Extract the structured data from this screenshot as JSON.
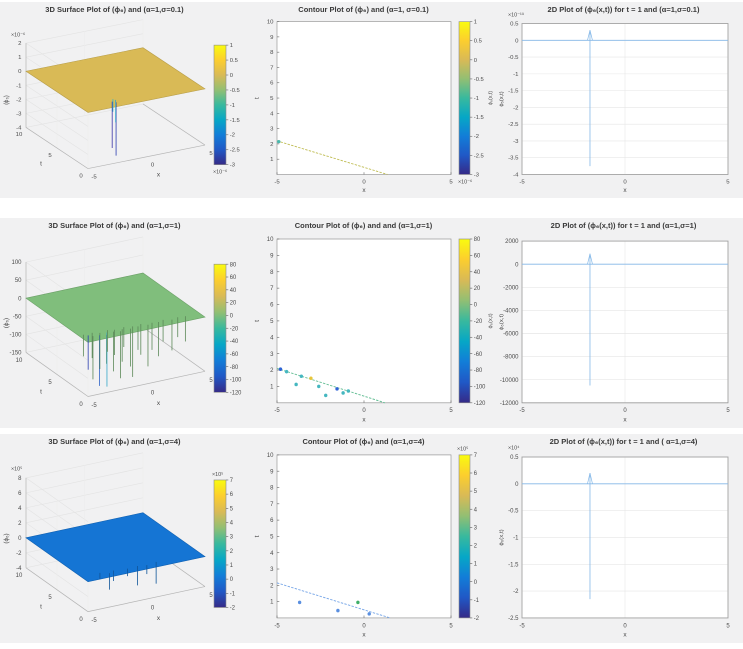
{
  "page": {
    "background": "#ffffff",
    "panel_background": "#f1f1f2",
    "axes_background": "#ffffff",
    "title_color": "#3a3a3a",
    "tick_color": "#4a4a4a",
    "grid_color": "#e6e6e6",
    "box_color": "#9a9a9a",
    "line_blue": "#85b8e8"
  },
  "colormap": [
    "#352a87",
    "#2058c6",
    "#127dd8",
    "#06a7c6",
    "#38b99e",
    "#92bf73",
    "#d9ba56",
    "#fcce2e",
    "#f9fb0e"
  ],
  "chart_data": [
    {
      "panel": "surface-r1",
      "type": "surface-3d",
      "title": "3D Surface Plot of (ϕ₆) and (α=1,σ=0.1)",
      "xlabel": "x",
      "tlabel": "t",
      "zlabel": "(ϕ₆)",
      "x_ticks": [
        -5,
        0,
        5
      ],
      "t_ticks": [
        10,
        5,
        0
      ],
      "z_ticks": [
        2,
        1,
        0,
        -1,
        -2,
        -3,
        -4
      ],
      "z_range": [
        -4,
        2
      ],
      "z_exp": "×10⁻⁶",
      "surface_z": 0,
      "clim": [
        -3,
        1
      ],
      "spikes": [
        {
          "x": -2.35,
          "t": 1.1,
          "d": 3.3,
          "c": "#3a35a8"
        },
        {
          "x": -2.15,
          "t": 0.85,
          "d": 3.8,
          "c": "#2c3eb0"
        },
        {
          "x": -2.05,
          "t": 1.55,
          "d": 0.9,
          "c": "#35b5c8"
        },
        {
          "x": -1.95,
          "t": 1.3,
          "d": 1.6,
          "c": "#35a8c8"
        }
      ],
      "colorbar": {
        "ticks": [
          "1",
          "0.5",
          "0",
          "-0.5",
          "-1",
          "-1.5",
          "-2",
          "-2.5",
          "-3"
        ],
        "exp": "×10⁻⁶",
        "exp_pos": "bottom"
      }
    },
    {
      "panel": "contour-r1",
      "type": "contour",
      "title": "Contour Plot of (ϕ₆) and (α=1, σ=0.1)",
      "xlabel": "x",
      "ylabel": "t",
      "x_range": [
        -5,
        5
      ],
      "y_range": [
        0,
        10
      ],
      "x_ticks": [
        -5,
        0,
        5
      ],
      "y_ticks": [
        1,
        2,
        3,
        4,
        5,
        6,
        7,
        8,
        9,
        10
      ],
      "band": {
        "from": [
          -5,
          2.2
        ],
        "to": [
          1.35,
          0
        ],
        "color": "#bfbc52"
      },
      "dots": [
        {
          "x": -4.9,
          "y": 2.15,
          "c": "#49b8ae"
        }
      ],
      "colorbar": {
        "ticks": [
          "1",
          "0.5",
          "0",
          "-0.5",
          "-1",
          "-1.5",
          "-2",
          "-2.5",
          "-3"
        ],
        "exp": "×10⁻⁶",
        "exp_pos": "bottom",
        "label": "ϕ₆(x,t)"
      }
    },
    {
      "panel": "line-r1",
      "type": "line",
      "title": "2D Plot of (ϕ₆(x,t)) for t = 1 and (α=1,σ=0.1)",
      "xlabel": "x",
      "ylabel": "ϕ₆(x,t)",
      "y_exp": "×10⁻¹⁹",
      "x_range": [
        -5,
        5
      ],
      "x_ticks": [
        -5,
        0,
        5
      ],
      "y_range": [
        -4,
        0.5
      ],
      "y_ticks": [
        0.5,
        0,
        -0.5,
        -1,
        -1.5,
        -2,
        -2.5,
        -3,
        -3.5,
        -4
      ],
      "line_color": "#85b8e8",
      "points": [
        [
          -5,
          0
        ],
        [
          -1.75,
          0.3
        ],
        [
          -1.7,
          -3.75
        ],
        [
          -1.62,
          0
        ],
        [
          5,
          0
        ]
      ],
      "spike": {
        "x": -1.7,
        "min": -3.75,
        "peak": 0.3
      }
    },
    {
      "panel": "surface-r2",
      "type": "surface-3d",
      "title": "3D Surface Plot of (ϕ₆) and (α=1,σ=1)",
      "xlabel": "x",
      "tlabel": "t",
      "zlabel": "(ϕ₆)",
      "x_ticks": [
        -5,
        0,
        5
      ],
      "t_ticks": [
        10,
        5,
        0
      ],
      "z_ticks": [
        100,
        50,
        0,
        -50,
        -100,
        -150
      ],
      "z_range": [
        -150,
        100
      ],
      "z_exp": "",
      "surface_z": 0,
      "clim": [
        -120,
        80
      ],
      "spikes": [
        {
          "x": -4.6,
          "t": 1.5,
          "d": 60
        },
        {
          "x": -4.35,
          "t": 1.2,
          "d": 95,
          "c": "#2c3eb0"
        },
        {
          "x": -4.1,
          "t": 0.9,
          "d": 120
        },
        {
          "x": -3.85,
          "t": 1.5,
          "d": 70
        },
        {
          "x": -3.6,
          "t": 0.8,
          "d": 140,
          "c": "#2c62c8"
        },
        {
          "x": -3.35,
          "t": 1.2,
          "d": 100
        },
        {
          "x": -3.1,
          "t": 0.6,
          "d": 80
        },
        {
          "x": -2.85,
          "t": 1.0,
          "d": 150,
          "c": "#35a8c8"
        },
        {
          "x": -2.6,
          "t": 1.4,
          "d": 60
        },
        {
          "x": -2.35,
          "t": 0.9,
          "d": 110
        },
        {
          "x": -2.1,
          "t": 1.2,
          "d": 70
        },
        {
          "x": -1.85,
          "t": 0.7,
          "d": 130
        },
        {
          "x": -1.55,
          "t": 1.0,
          "d": 90
        },
        {
          "x": -1.25,
          "t": 1.3,
          "d": 55
        },
        {
          "x": -0.95,
          "t": 0.8,
          "d": 105
        },
        {
          "x": -0.6,
          "t": 1.1,
          "d": 140
        },
        {
          "x": -0.25,
          "t": 0.9,
          "d": 65
        },
        {
          "x": 0.15,
          "t": 1.2,
          "d": 85
        },
        {
          "x": 0.55,
          "t": 0.8,
          "d": 115
        },
        {
          "x": 1.0,
          "t": 1.0,
          "d": 75
        },
        {
          "x": 1.5,
          "t": 0.9,
          "d": 95
        },
        {
          "x": 2.0,
          "t": 1.1,
          "d": 60
        },
        {
          "x": 2.6,
          "t": 0.8,
          "d": 85
        },
        {
          "x": 3.2,
          "t": 1.0,
          "d": 55
        },
        {
          "x": 3.8,
          "t": 0.9,
          "d": 70
        }
      ],
      "colorbar": {
        "ticks": [
          "80",
          "60",
          "40",
          "20",
          "0",
          "-20",
          "-40",
          "-60",
          "-80",
          "-100",
          "-120"
        ],
        "exp": "",
        "exp_pos": "bottom"
      }
    },
    {
      "panel": "contour-r2",
      "type": "contour",
      "title": "Contour Plot of (ϕ₆) and and (α=1,σ=1)",
      "xlabel": "x",
      "ylabel": "t",
      "x_range": [
        -5,
        5
      ],
      "y_range": [
        0,
        10
      ],
      "x_ticks": [
        -5,
        0,
        5
      ],
      "y_ticks": [
        1,
        2,
        3,
        4,
        5,
        6,
        7,
        8,
        9,
        10
      ],
      "band": {
        "from": [
          -5,
          2.1
        ],
        "to": [
          1.2,
          0
        ],
        "color": "#66bf96"
      },
      "dots": [
        {
          "x": -4.8,
          "y": 2.05,
          "c": "#2e63d6"
        },
        {
          "x": -4.45,
          "y": 1.9,
          "c": "#45b7c0"
        },
        {
          "x": -3.6,
          "y": 1.62,
          "c": "#45b7c0"
        },
        {
          "x": -3.05,
          "y": 1.5,
          "c": "#e8c53a"
        },
        {
          "x": -3.9,
          "y": 1.12,
          "c": "#45b7c0"
        },
        {
          "x": -2.6,
          "y": 1.0,
          "c": "#45b7c0"
        },
        {
          "x": -1.55,
          "y": 0.85,
          "c": "#2e63d6"
        },
        {
          "x": -0.9,
          "y": 0.72,
          "c": "#45b7c0"
        },
        {
          "x": -2.2,
          "y": 0.45,
          "c": "#45b7c0"
        },
        {
          "x": -1.2,
          "y": 0.6,
          "c": "#45b7c0"
        }
      ],
      "colorbar": {
        "ticks": [
          "80",
          "60",
          "40",
          "20",
          "0",
          "-20",
          "-40",
          "-60",
          "-80",
          "-100",
          "-120"
        ],
        "exp": "",
        "exp_pos": "bottom",
        "label": "ϕ₆(x,t)"
      }
    },
    {
      "panel": "line-r2",
      "type": "line",
      "title": "2D Plot of (ϕ₆(x,t)) for t = 1 and (α=1,σ=1)",
      "xlabel": "x",
      "ylabel": "ϕ₆(x,t)",
      "y_exp": "",
      "x_range": [
        -5,
        5
      ],
      "x_ticks": [
        -5,
        0,
        5
      ],
      "y_range": [
        -12000,
        2000
      ],
      "y_ticks": [
        2000,
        0,
        -2000,
        -4000,
        -6000,
        -8000,
        -10000,
        -12000
      ],
      "line_color": "#85b8e8",
      "points": [
        [
          -5,
          0
        ],
        [
          -1.75,
          900
        ],
        [
          -1.7,
          -10500
        ],
        [
          -1.62,
          0
        ],
        [
          5,
          0
        ]
      ],
      "spike": {
        "x": -1.7,
        "min": -10500,
        "peak": 900
      }
    },
    {
      "panel": "surface-r3",
      "type": "surface-3d",
      "title": "3D Surface Plot of (ϕ₆) and (α=1,σ=4)",
      "xlabel": "x",
      "tlabel": "t",
      "zlabel": "(ϕ₆)",
      "x_ticks": [
        -5,
        0,
        5
      ],
      "t_ticks": [
        10,
        5,
        0
      ],
      "z_ticks": [
        8,
        6,
        4,
        2,
        0,
        -2,
        -4
      ],
      "z_range": [
        -4,
        8
      ],
      "z_exp": "×10⁵",
      "surface_z": 0,
      "clim": [
        -2,
        7
      ],
      "spikes": [
        {
          "x": -3.4,
          "t": 1.1,
          "d": 0.8
        },
        {
          "x": -2.8,
          "t": 0.7,
          "d": 2.2
        },
        {
          "x": -2.3,
          "t": 1.0,
          "d": 1.4
        },
        {
          "x": -1.2,
          "t": 0.8,
          "d": 1.0
        },
        {
          "x": -0.3,
          "t": 0.9,
          "d": 2.6
        },
        {
          "x": 0.4,
          "t": 0.7,
          "d": 1.2
        },
        {
          "x": 1.3,
          "t": 0.9,
          "d": 2.9
        }
      ],
      "colorbar": {
        "ticks": [
          "7",
          "6",
          "5",
          "4",
          "3",
          "2",
          "1",
          "0",
          "-1",
          "-2"
        ],
        "exp": "×10⁵",
        "exp_pos": "top"
      }
    },
    {
      "panel": "contour-r3",
      "type": "contour",
      "title": "Contour Plot of (ϕ₆) and (α=1,σ=4)",
      "xlabel": "x",
      "ylabel": "t",
      "x_range": [
        -5,
        5
      ],
      "y_range": [
        0,
        10
      ],
      "x_ticks": [
        -5,
        0,
        5
      ],
      "y_ticks": [
        1,
        2,
        3,
        4,
        5,
        6,
        7,
        8,
        9,
        10
      ],
      "band": {
        "from": [
          -5,
          2.15
        ],
        "to": [
          1.5,
          0
        ],
        "color": "#7aa8e8"
      },
      "dots": [
        {
          "x": -3.7,
          "y": 0.95,
          "c": "#5a8fe0"
        },
        {
          "x": -0.35,
          "y": 0.95,
          "c": "#3fae68"
        },
        {
          "x": -1.5,
          "y": 0.45,
          "c": "#5a8fe0"
        },
        {
          "x": 0.3,
          "y": 0.25,
          "c": "#5a8fe0"
        }
      ],
      "colorbar": {
        "ticks": [
          "7",
          "6",
          "5",
          "4",
          "3",
          "2",
          "1",
          "0",
          "-1",
          "-2"
        ],
        "exp": "×10⁵",
        "exp_pos": "top"
      }
    },
    {
      "panel": "line-r3",
      "type": "line",
      "title": "2D Plot of (ϕ₆(x,t)) for t = 1 and ( α=1,σ=4)",
      "xlabel": "x",
      "ylabel": "ϕ₆(x,t)",
      "y_exp": "×10⁴",
      "x_range": [
        -5,
        5
      ],
      "x_ticks": [
        -5,
        0,
        5
      ],
      "y_range": [
        -2.5,
        0.5
      ],
      "y_ticks": [
        0.5,
        0,
        -0.5,
        -1,
        -1.5,
        -2,
        -2.5
      ],
      "line_color": "#85b8e8",
      "points": [
        [
          -5,
          0
        ],
        [
          -1.75,
          0.2
        ],
        [
          -1.7,
          -2.15
        ],
        [
          -1.62,
          0
        ],
        [
          5,
          0
        ]
      ],
      "spike": {
        "x": -1.7,
        "min": -2.15,
        "peak": 0.2
      }
    }
  ]
}
